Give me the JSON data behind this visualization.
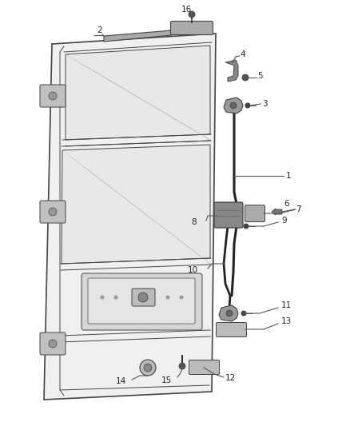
{
  "bg_color": "#ffffff",
  "fig_width": 4.38,
  "fig_height": 5.33,
  "dpi": 100,
  "line_color": "#444444",
  "dark_color": "#222222",
  "mid_color": "#888888",
  "light_color": "#cccccc",
  "door_fill": "#f0f0f0",
  "panel_fill": "#e0e0e0",
  "hatch_fill": "#d8d8d8",
  "leader_color": "#555555",
  "label_fontsize": 7.5
}
